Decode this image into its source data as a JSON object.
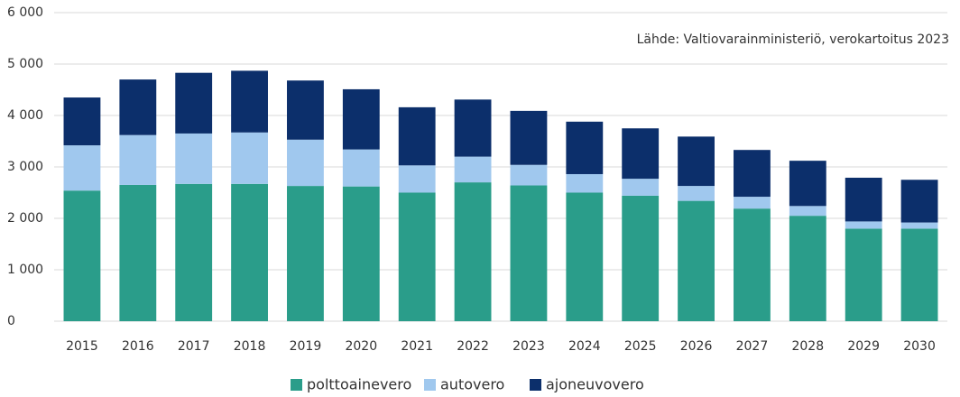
{
  "chart_data": {
    "type": "stacked_bar",
    "annotation": "Lähde: Valtiovarainministeriö, verokartoitus 2023",
    "categories": [
      "2015",
      "2016",
      "2017",
      "2018",
      "2019",
      "2020",
      "2021",
      "2022",
      "2023",
      "2024",
      "2025",
      "2026",
      "2027",
      "2028",
      "2029",
      "2030"
    ],
    "series": [
      {
        "name": "polttoainevero",
        "color": "#2a9d8a",
        "values": [
          2540,
          2650,
          2670,
          2670,
          2630,
          2620,
          2500,
          2700,
          2640,
          2500,
          2440,
          2340,
          2190,
          2050,
          1800,
          1800
        ]
      },
      {
        "name": "autovero",
        "color": "#a0c8ee",
        "values": [
          880,
          970,
          980,
          1000,
          900,
          720,
          530,
          500,
          400,
          360,
          330,
          290,
          230,
          190,
          140,
          120
        ]
      },
      {
        "name": "ajoneuvovero",
        "color": "#0c2f6b",
        "values": [
          930,
          1080,
          1180,
          1200,
          1150,
          1170,
          1130,
          1110,
          1050,
          1020,
          980,
          960,
          910,
          880,
          850,
          830
        ]
      }
    ],
    "ylim": [
      0,
      6000
    ],
    "yticks": [
      0,
      {
        "value": 1000,
        "label": "1 000"
      },
      {
        "value": 2000,
        "label": "2 000"
      },
      {
        "value": 3000,
        "label": "3 000"
      },
      {
        "value": 4000,
        "label": "4 000"
      },
      {
        "value": 5000,
        "label": "5 000"
      },
      {
        "value": 6000,
        "label": "6 000"
      }
    ],
    "grid": true,
    "legend": "bottom"
  }
}
